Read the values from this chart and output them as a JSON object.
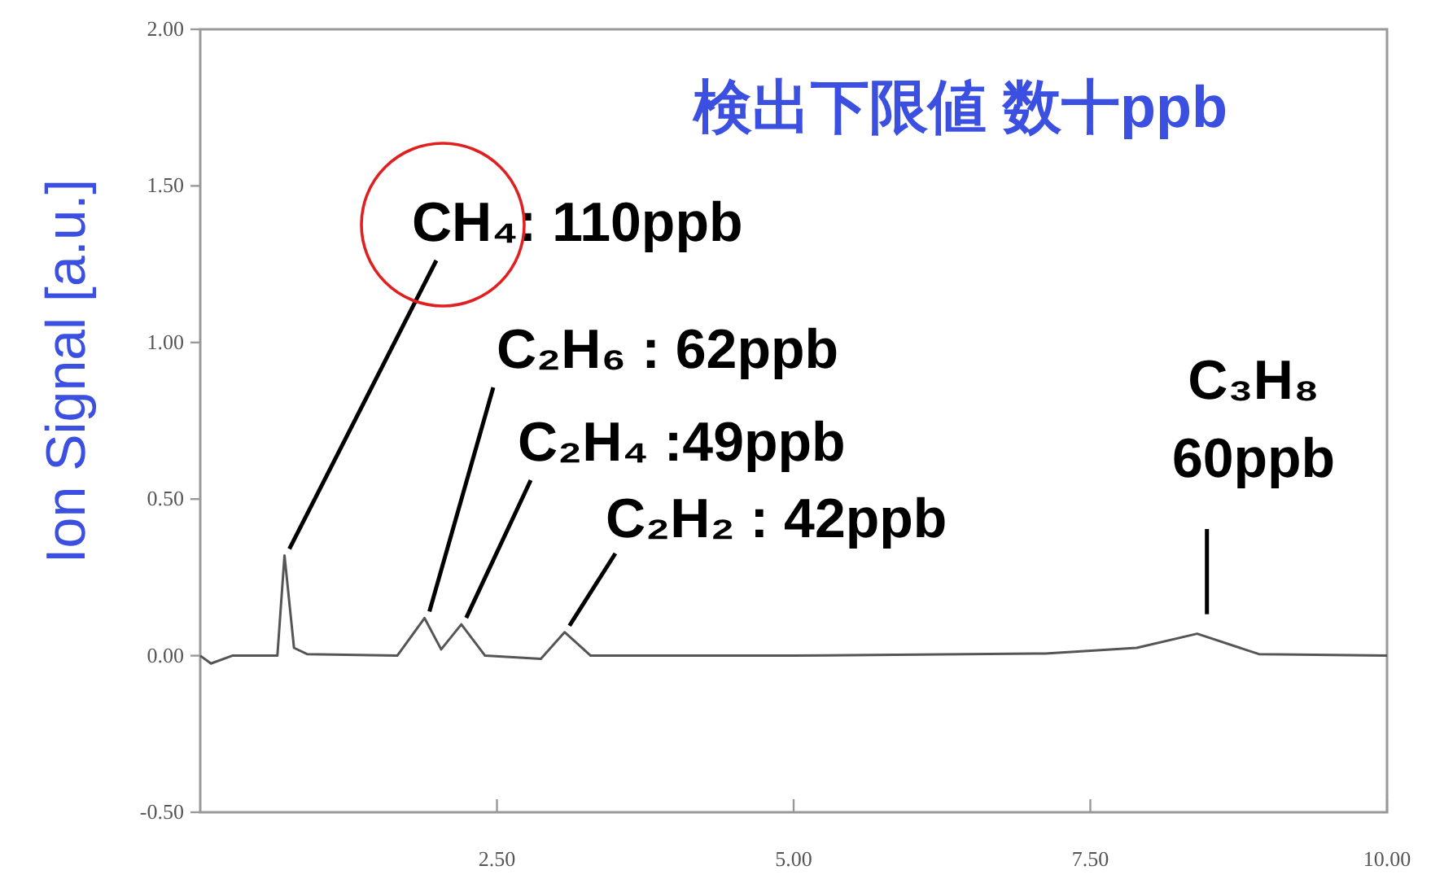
{
  "chart_data": {
    "type": "line",
    "title": "検出下限値 数十ppb",
    "ylabel": "Ion  Signal [a.u.]",
    "x": [
      0,
      0.09,
      0.27,
      0.65,
      0.71,
      0.79,
      0.9,
      1.66,
      1.89,
      2.03,
      2.2,
      2.4,
      2.87,
      3.07,
      3.29,
      5.0,
      7.12,
      7.89,
      8.4,
      8.92,
      10
    ],
    "series": [
      {
        "color": "#555555",
        "values": [
          0,
          -0.025,
          0,
          0,
          0.32,
          0.025,
          0.005,
          0,
          0.12,
          0.02,
          0.1,
          0,
          -0.01,
          0.075,
          0,
          0,
          0.007,
          0.025,
          0.07,
          0.005,
          0
        ]
      }
    ],
    "xlim": [
      0,
      10
    ],
    "ylim": [
      -0.5,
      2
    ],
    "xticks": [
      {
        "value": 2.5,
        "label": "2.50"
      },
      {
        "value": 5,
        "label": "5.00"
      },
      {
        "value": 7.5,
        "label": "7.50"
      },
      {
        "value": 10,
        "label": "10.00"
      }
    ],
    "yticks": [
      {
        "value": -0.5,
        "label": "-0.50"
      },
      {
        "value": 0,
        "label": "0.00"
      },
      {
        "value": 0.5,
        "label": "0.50"
      },
      {
        "value": 1,
        "label": "1.00"
      },
      {
        "value": 1.5,
        "label": "1.50"
      },
      {
        "value": 2,
        "label": "2.00"
      }
    ],
    "annotations": [
      {
        "text": "CH₄: 110ppb",
        "x": 0.71,
        "y": 0.32
      },
      {
        "text": "C₂H₆ : 62ppb",
        "x": 1.89,
        "y": 0.12
      },
      {
        "text": "C₂H₄ :49ppb",
        "x": 2.2,
        "y": 0.1
      },
      {
        "text": "C₂H₂ : 42ppb",
        "x": 3.07,
        "y": 0.075
      },
      {
        "text": "C₃H₈\n60ppb",
        "x": 8.4,
        "y": 0.07
      }
    ],
    "grid": false,
    "marker": "none",
    "line_style": "solid"
  }
}
